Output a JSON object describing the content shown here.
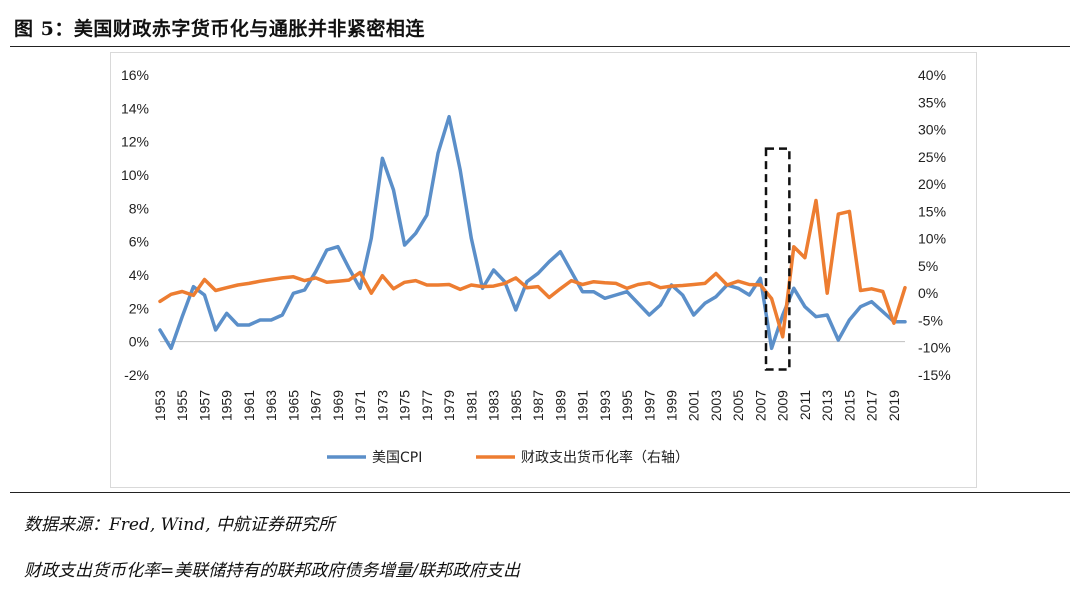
{
  "header": {
    "title": "图 5：美国财政赤字货币化与通胀并非紧密相连"
  },
  "footnotes": {
    "source": "数据来源：Fred, Wind, 中航证券研究所",
    "definition": "财政支出货币化率=美联储持有的联邦政府债务增量/联邦政府支出"
  },
  "chart_data": {
    "type": "line",
    "title": "",
    "x": [
      1953,
      1954,
      1955,
      1956,
      1957,
      1958,
      1959,
      1960,
      1961,
      1962,
      1963,
      1964,
      1965,
      1966,
      1967,
      1968,
      1969,
      1970,
      1971,
      1972,
      1973,
      1974,
      1975,
      1976,
      1977,
      1978,
      1979,
      1980,
      1981,
      1982,
      1983,
      1984,
      1985,
      1986,
      1987,
      1988,
      1989,
      1990,
      1991,
      1992,
      1993,
      1994,
      1995,
      1996,
      1997,
      1998,
      1999,
      2000,
      2001,
      2002,
      2003,
      2004,
      2005,
      2006,
      2007,
      2008,
      2009,
      2010,
      2011,
      2012,
      2013,
      2014,
      2015,
      2016,
      2017,
      2018,
      2019,
      2020
    ],
    "x_tick_labels": [
      "1953",
      "1955",
      "1957",
      "1959",
      "1961",
      "1963",
      "1965",
      "1967",
      "1969",
      "1971",
      "1973",
      "1975",
      "1977",
      "1979",
      "1981",
      "1983",
      "1985",
      "1987",
      "1989",
      "1991",
      "1993",
      "1995",
      "1997",
      "1999",
      "2001",
      "2003",
      "2005",
      "2007",
      "2009",
      "2011",
      "2013",
      "2015",
      "2017",
      "2019"
    ],
    "y_left": {
      "ylim": [
        -2,
        16
      ],
      "tick_labels": [
        "-2%",
        "0%",
        "2%",
        "4%",
        "6%",
        "8%",
        "10%",
        "12%",
        "14%",
        "16%"
      ]
    },
    "y_right": {
      "ylim": [
        -15,
        40
      ],
      "tick_labels": [
        "-15%",
        "-10%",
        "-5%",
        "0%",
        "5%",
        "10%",
        "15%",
        "20%",
        "25%",
        "30%",
        "35%",
        "40%"
      ]
    },
    "series": [
      {
        "name": "美国CPI",
        "axis": "left",
        "color": "#5b8fc9",
        "values": [
          0.7,
          -0.4,
          1.5,
          3.3,
          2.8,
          0.7,
          1.7,
          1.0,
          1.0,
          1.3,
          1.3,
          1.6,
          2.9,
          3.1,
          4.2,
          5.5,
          5.7,
          4.4,
          3.2,
          6.2,
          11.0,
          9.1,
          5.8,
          6.5,
          7.6,
          11.3,
          13.5,
          10.3,
          6.2,
          3.2,
          4.3,
          3.6,
          1.9,
          3.6,
          4.1,
          4.8,
          5.4,
          4.2,
          3.0,
          3.0,
          2.6,
          2.8,
          3.0,
          2.3,
          1.6,
          2.2,
          3.4,
          2.8,
          1.6,
          2.3,
          2.7,
          3.4,
          3.2,
          2.8,
          3.8,
          -0.4,
          1.6,
          3.2,
          2.1,
          1.5,
          1.6,
          0.1,
          1.3,
          2.1,
          2.4,
          1.8,
          1.2,
          1.2
        ]
      },
      {
        "name": "财政支出货币化率（右轴）",
        "axis": "right",
        "color": "#ed7d31",
        "values": [
          -1.5,
          -0.2,
          0.3,
          -0.4,
          2.5,
          0.5,
          1.0,
          1.5,
          1.8,
          2.2,
          2.5,
          2.8,
          3.0,
          2.3,
          2.8,
          2.0,
          2.2,
          2.4,
          3.8,
          0.0,
          3.2,
          0.8,
          2.0,
          2.3,
          1.5,
          1.5,
          1.6,
          0.7,
          1.5,
          1.2,
          1.3,
          1.8,
          2.8,
          1.0,
          1.2,
          -0.8,
          0.8,
          2.3,
          1.6,
          2.1,
          1.9,
          1.8,
          0.9,
          1.6,
          1.9,
          1.0,
          1.3,
          1.4,
          1.6,
          1.8,
          3.6,
          1.5,
          2.2,
          1.6,
          1.5,
          -1.0,
          -8.0,
          8.5,
          6.5,
          17.0,
          0.0,
          14.5,
          15.0,
          0.5,
          0.8,
          0.3,
          -5.5,
          1.0
        ]
      }
    ],
    "legend": [
      "美国CPI",
      "财政支出货币化率（右轴）"
    ],
    "legend_position": "bottom",
    "annotation": {
      "type": "dashed-rectangle",
      "x_range": [
        2007.5,
        2009.6
      ],
      "y_right_range": [
        -14,
        26.5
      ]
    },
    "grid": false
  }
}
